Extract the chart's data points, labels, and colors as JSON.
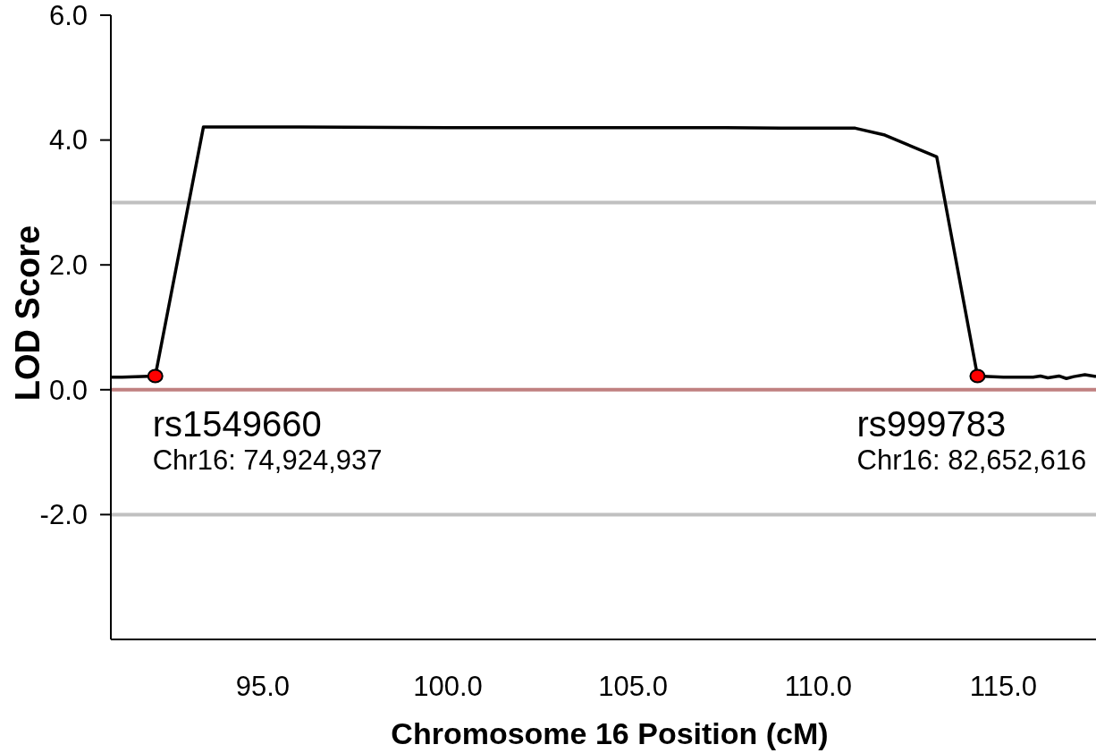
{
  "chart_data": {
    "type": "line",
    "xlabel": "Chromosome 16 Position (cM)",
    "ylabel": "LOD Score",
    "xlim": [
      90.9,
      117.5
    ],
    "ylim": [
      -4,
      6
    ],
    "xticks": [
      {
        "value": 95,
        "label": "95.0"
      },
      {
        "value": 100,
        "label": "100.0"
      },
      {
        "value": 105,
        "label": "105.0"
      },
      {
        "value": 110,
        "label": "110.0"
      },
      {
        "value": 115,
        "label": "115.0"
      }
    ],
    "yticks": [
      {
        "value": -2,
        "label": "-2.0"
      },
      {
        "value": 0,
        "label": "0.0"
      },
      {
        "value": 2,
        "label": "2.0"
      },
      {
        "value": 4,
        "label": "4.0"
      },
      {
        "value": 6,
        "label": "6.0"
      }
    ],
    "series": [
      {
        "color": "#000000",
        "x": [
          90.9,
          91.2,
          92.1,
          93.4,
          96.0,
          100.0,
          105.0,
          107.5,
          109.0,
          111.0,
          111.8,
          113.2,
          114.3,
          115.0,
          115.8,
          116.0,
          116.2,
          116.5,
          116.7,
          116.9,
          117.2,
          117.5
        ],
        "values": [
          0.2,
          0.2,
          0.22,
          4.21,
          4.21,
          4.2,
          4.2,
          4.2,
          4.19,
          4.19,
          4.08,
          3.73,
          0.22,
          0.2,
          0.2,
          0.22,
          0.19,
          0.22,
          0.18,
          0.21,
          0.24,
          0.21
        ]
      },
      {
        "type": "scatter",
        "color": "#ff0000",
        "marker": "circle",
        "x": [
          92.1,
          114.3
        ],
        "values": [
          0.22,
          0.22
        ]
      }
    ],
    "ref_lines": [
      {
        "axis": "y",
        "value": 3,
        "color": "#c0c0c0"
      },
      {
        "axis": "y",
        "value": 0,
        "color": "#c08080"
      },
      {
        "axis": "y",
        "value": -2,
        "color": "#c0c0c0"
      }
    ],
    "annotations": [
      "rs1549660",
      "Chr16: 74,924,937",
      "rs999783",
      "Chr16: 82,652,616"
    ]
  }
}
